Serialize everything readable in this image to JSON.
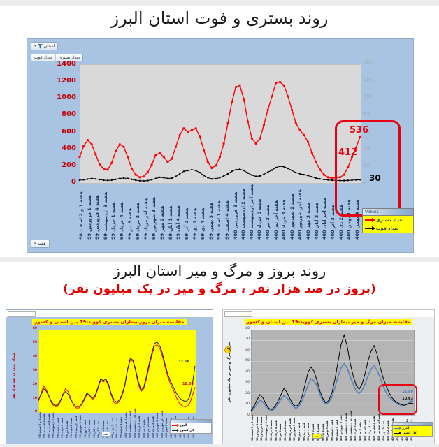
{
  "page": {
    "title1": "روند بستری و فوت استان البرز",
    "title2": "روند بروز و مرگ و میر استان البرز",
    "subtitle2": "(بروز در صد هزار نفر ، مرگ و میر در یک میلیون نفر)"
  },
  "toolbar": {
    "filter_label": "استان",
    "tabs": [
      "تعداد بستری",
      "تعداد فوت"
    ],
    "week_label": "هفته",
    "legend_title": "Values"
  },
  "chart_data": [
    {
      "id": "hospitalization_deaths",
      "type": "line",
      "title": "روند بستری و فوت استان البرز",
      "ylim": [
        0,
        1400
      ],
      "yticks": [
        1400,
        1200,
        1000,
        800,
        600,
        400,
        200,
        0
      ],
      "legend_position": "bottom-right",
      "categories": [
        "هفته 1 و 2 اسفند 98",
        "هفته 1 فروردین 99",
        "هفته 4 فروردین 99",
        "هفته 3 اردیبهشت 99",
        "هفته 1 خرداد 99",
        "هفته 4 خرداد 99",
        "هفته 3 تیر 99",
        "هفته 2 مرداد 99",
        "هفته آخر مرداد 99",
        "هفته 3 شهریور 99",
        "هفته 2 مهر 99",
        "هفته 1 آبان 99",
        "هفته 4 آبان 99",
        "هفته 2 آذر 99",
        "هفته 1 دی 99",
        "هفته 4 دی 99",
        "هفته 3 بهمن 99",
        "هفته 1 اسفند 99",
        "هفته 4 اسفند 99",
        "هفته 3 فروردین 400",
        "هفته 2 اردیبهشت 400",
        "هفته آخر اردیبهشت 400",
        "هفته 3 خرداد 400",
        "هفته 2 تیر 400",
        "هفته آخر تیر 400",
        "هفته 3 مرداد 400",
        "هفته 2 شهریور 400",
        "هفته آخر شهریور 400",
        "هفته 3 مهر 400",
        "هفته 2 آبان 400",
        "هفته آخر آبان 400",
        "هفته 3 آذر 400",
        "هفته 2 دی 400",
        "هفته 1 بهمن 400",
        "هفته 4 بهمن 400"
      ],
      "series": [
        {
          "name": "تعداد بستری",
          "color": "#ff0000",
          "width": 1.4,
          "markers": true,
          "marker_r": 1.6,
          "values": [
            300,
            430,
            500,
            450,
            330,
            210,
            160,
            150,
            230,
            370,
            450,
            420,
            300,
            160,
            90,
            60,
            70,
            120,
            210,
            320,
            350,
            300,
            240,
            280,
            420,
            560,
            640,
            600,
            620,
            640,
            540,
            380,
            240,
            170,
            200,
            300,
            460,
            700,
            950,
            1130,
            1150,
            980,
            720,
            520,
            460,
            520,
            680,
            860,
            1020,
            1180,
            1190,
            1150,
            1020,
            860,
            700,
            620,
            560,
            480,
            350,
            240,
            150,
            90,
            60,
            50,
            55,
            60,
            90,
            180,
            300,
            412,
            536
          ]
        },
        {
          "name": "تعداد فوت",
          "color": "#000000",
          "width": 1.1,
          "markers": true,
          "marker_r": 1.2,
          "values": [
            25,
            30,
            38,
            45,
            40,
            32,
            25,
            22,
            26,
            35,
            45,
            50,
            45,
            35,
            25,
            18,
            16,
            20,
            30,
            45,
            60,
            55,
            45,
            50,
            70,
            100,
            130,
            140,
            150,
            140,
            115,
            80,
            55,
            40,
            42,
            55,
            75,
            100,
            130,
            150,
            155,
            140,
            110,
            85,
            70,
            75,
            95,
            120,
            145,
            175,
            190,
            185,
            165,
            140,
            115,
            100,
            90,
            80,
            65,
            50,
            40,
            32,
            28,
            25,
            22,
            20,
            20,
            22,
            25,
            28,
            30
          ]
        }
      ],
      "annotations": {
        "latest_hospitalized": "536",
        "previous_hospitalized": "412",
        "latest_deaths": "30"
      }
    },
    {
      "id": "incidence",
      "type": "line",
      "title": "مقایسه میزان بروز بیماران بستری کووید-19 بین استان و کشور",
      "ylabel": "میزان بروز در صد هزار نفر",
      "ylim": [
        0,
        60
      ],
      "yticks": [
        60,
        50,
        40,
        30,
        20,
        10,
        0
      ],
      "legend_position": "bottom-right",
      "categories": [
        "هفته 1 و 2 اسفند 98",
        "هفته 1 فروردین 99",
        "هفته 4 فروردین 99",
        "هفته 3 اردیبهشت 99",
        "هفته 1 خرداد 99",
        "هفته 4 خرداد 99",
        "هفته 3 تیر 99",
        "هفته 2 مرداد 99",
        "هفته آخر مرداد 99",
        "هفته 3 شهریور 99",
        "هفته 2 مهر 99",
        "هفته 1 آبان 99",
        "هفته 4 آبان 99",
        "هفته 2 آذر 99",
        "هفته 1 دی 99",
        "هفته 4 دی 99",
        "هفته 3 بهمن 99",
        "هفته 1 اسفند 99",
        "هفته 4 اسفند 99",
        "هفته 3 فروردین 400",
        "هفته 2 اردیبهشت 400",
        "هفته آخر اردیبهشت 400",
        "هفته 3 خرداد 400",
        "هفته 2 تیر 400",
        "هفته آخر تیر 400",
        "هفته 3 مرداد 400",
        "هفته 2 شهریور 400",
        "هفته آخر شهریور 400",
        "هفته 3 مهر 400",
        "هفته 2 آبان 400",
        "هفته آخر آبان 400",
        "هفته 3 آذر 400",
        "هفته 2 دی 400",
        "هفته 1 بهمن 400",
        "هفته 4 بهمن 400"
      ],
      "series": [
        {
          "name": "البرز",
          "color": "#ff0000",
          "width": 1,
          "values": [
            8,
            14,
            19,
            16,
            11,
            6,
            4,
            4,
            7,
            13,
            17,
            15,
            10,
            5,
            3,
            3,
            5,
            9,
            13,
            12,
            9,
            11,
            17,
            23,
            22,
            23,
            19,
            12,
            7,
            6,
            8,
            12,
            19,
            30,
            38,
            37,
            30,
            20,
            15,
            17,
            24,
            33,
            41,
            48,
            49,
            46,
            40,
            32,
            25,
            20,
            16,
            11,
            7,
            5,
            4,
            4,
            6,
            12,
            18.08
          ]
        },
        {
          "name": "کل کشور",
          "color": "#1a1a1a",
          "width": 1,
          "values": [
            9,
            13,
            17,
            15,
            11,
            7,
            5,
            5,
            8,
            12,
            15,
            13,
            9,
            6,
            4,
            4,
            6,
            10,
            14,
            12,
            10,
            12,
            18,
            24,
            23,
            24,
            20,
            13,
            9,
            7,
            9,
            13,
            20,
            31,
            39,
            38,
            31,
            22,
            16,
            18,
            26,
            35,
            43,
            50,
            51,
            48,
            42,
            34,
            27,
            22,
            18,
            14,
            11,
            9,
            8,
            8,
            11,
            20,
            33.68
          ]
        }
      ],
      "annotations": {
        "country_latest": "33.68",
        "alborz_latest": "18.08"
      }
    },
    {
      "id": "mortality",
      "type": "line",
      "title": "مقایسه میزان مرگ و میر بیماران بستری کووید-19 بین استان و کشور",
      "ylabel": "میزان مرگ و میر در یک میلیون نفر",
      "ylim": [
        0,
        80
      ],
      "yticks": [
        80,
        70,
        60,
        50,
        40,
        30,
        20,
        10,
        0
      ],
      "grid": [
        10,
        20,
        30,
        40,
        50,
        60,
        70
      ],
      "grid_color": "#d9d9d9",
      "legend_position": "bottom-right",
      "categories": [
        "هفته 1 و 2 اسفند 98",
        "هفته 1 فروردین 99",
        "هفته 4 فروردین 99",
        "هفته 3 اردیبهشت 99",
        "هفته 1 خرداد 99",
        "هفته 4 خرداد 99",
        "هفته 3 تیر 99",
        "هفته 2 مرداد 99",
        "هفته آخر مرداد 99",
        "هفته 3 شهریور 99",
        "هفته 2 مهر 99",
        "هفته 1 آبان 99",
        "هفته 4 آبان 99",
        "هفته 2 آذر 99",
        "هفته 1 دی 99",
        "هفته 4 دی 99",
        "هفته 3 بهمن 99",
        "هفته 1 اسفند 99",
        "هفته 4 اسفند 99",
        "هفته 3 فروردین 400",
        "هفته 2 اردیبهشت 400",
        "هفته آخر اردیبهشت 400",
        "هفته 3 خرداد 400",
        "هفته 2 تیر 400",
        "هفته آخر تیر 400",
        "هفته 3 مرداد 400",
        "هفته 2 شهریور 400",
        "هفته آخر شهریور 400",
        "هفته 3 مهر 400",
        "هفته 2 آبان 400",
        "هفته آخر آبان 400",
        "هفته 3 آذر 400",
        "هفته 2 دی 400",
        "هفته 1 بهمن 400",
        "هفته 4 بهمن 400"
      ],
      "series": [
        {
          "name": "البرز",
          "color": "#4f81bd",
          "width": 1.5,
          "values": [
            3,
            6,
            10,
            14,
            12,
            8,
            5,
            4,
            6,
            10,
            15,
            18,
            16,
            12,
            8,
            6,
            8,
            13,
            20,
            28,
            34,
            32,
            27,
            19,
            13,
            10,
            12,
            17,
            26,
            36,
            44,
            48,
            44,
            36,
            29,
            23,
            20,
            23,
            29,
            37,
            43,
            46,
            42,
            35,
            27,
            21,
            17,
            14,
            12,
            10,
            9,
            9,
            10,
            13,
            12.89
          ]
        },
        {
          "name": "کل کشور",
          "color": "#000000",
          "width": 1,
          "values": [
            4,
            8,
            14,
            19,
            16,
            10,
            6,
            5,
            8,
            13,
            19,
            25,
            21,
            15,
            10,
            8,
            10,
            17,
            28,
            40,
            45,
            41,
            32,
            22,
            15,
            11,
            14,
            21,
            34,
            50,
            66,
            75,
            65,
            49,
            37,
            28,
            24,
            29,
            39,
            51,
            60,
            65,
            57,
            45,
            35,
            27,
            21,
            16,
            13,
            11,
            10,
            9,
            10,
            11,
            10.63
          ]
        }
      ],
      "annotations": {
        "alborz_latest": "12.89",
        "country_latest": "10.63"
      }
    }
  ]
}
